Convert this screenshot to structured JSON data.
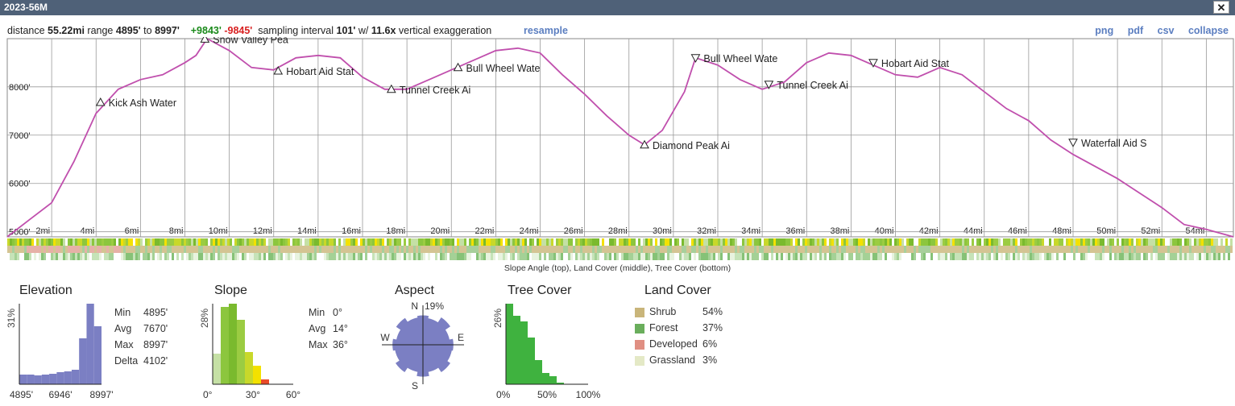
{
  "window": {
    "title": "2023-56M",
    "close_label": "✕"
  },
  "info": {
    "distance_label": "distance",
    "distance": "55.22mi",
    "range_label": "range",
    "range_min": "4895'",
    "range_to": "to",
    "range_max": "8997'",
    "gain": "+9843'",
    "loss": "-9845'",
    "sampling_label": "sampling interval",
    "sampling": "101'",
    "exag_label": "w/",
    "exag": "11.6x",
    "exag_suffix": "vertical exaggeration",
    "resample": "resample"
  },
  "links": {
    "png": "png",
    "pdf": "pdf",
    "csv": "csv",
    "collapse": "collapse"
  },
  "chart_data": {
    "type": "line",
    "x_ticks": [
      "2mi",
      "4mi",
      "6mi",
      "8mi",
      "10mi",
      "12mi",
      "14mi",
      "16mi",
      "18mi",
      "20mi",
      "22mi",
      "24mi",
      "26mi",
      "28mi",
      "30mi",
      "32mi",
      "34mi",
      "36mi",
      "38mi",
      "40mi",
      "42mi",
      "44mi",
      "46mi",
      "48mi",
      "50mi",
      "52mi",
      "54mi"
    ],
    "y_ticks": [
      "5000'",
      "6000'",
      "7000'",
      "8000'"
    ],
    "xlim": [
      0,
      55.22
    ],
    "ylim": [
      4895,
      8997
    ],
    "line_color": "#c04fad",
    "profile": [
      [
        0,
        4895
      ],
      [
        1,
        5250
      ],
      [
        2,
        5600
      ],
      [
        3,
        6450
      ],
      [
        4,
        7450
      ],
      [
        5,
        7950
      ],
      [
        6,
        8150
      ],
      [
        7,
        8250
      ],
      [
        8,
        8500
      ],
      [
        8.5,
        8650
      ],
      [
        9,
        8997
      ],
      [
        10,
        8750
      ],
      [
        11,
        8400
      ],
      [
        12,
        8350
      ],
      [
        13,
        8600
      ],
      [
        14,
        8650
      ],
      [
        15,
        8600
      ],
      [
        16,
        8200
      ],
      [
        17,
        7950
      ],
      [
        18,
        7950
      ],
      [
        19,
        8150
      ],
      [
        20,
        8350
      ],
      [
        21,
        8550
      ],
      [
        22,
        8750
      ],
      [
        23,
        8800
      ],
      [
        24,
        8700
      ],
      [
        25,
        8250
      ],
      [
        26,
        7850
      ],
      [
        27,
        7400
      ],
      [
        28,
        7000
      ],
      [
        28.7,
        6800
      ],
      [
        29.5,
        7100
      ],
      [
        30,
        7500
      ],
      [
        30.5,
        7900
      ],
      [
        31,
        8600
      ],
      [
        32,
        8450
      ],
      [
        33,
        8150
      ],
      [
        34,
        7950
      ],
      [
        35,
        8100
      ],
      [
        36,
        8500
      ],
      [
        37,
        8700
      ],
      [
        38,
        8650
      ],
      [
        39,
        8450
      ],
      [
        40,
        8250
      ],
      [
        41,
        8200
      ],
      [
        42,
        8400
      ],
      [
        43,
        8250
      ],
      [
        44,
        7900
      ],
      [
        45,
        7550
      ],
      [
        46,
        7300
      ],
      [
        47,
        6900
      ],
      [
        48,
        6600
      ],
      [
        49,
        6350
      ],
      [
        50,
        6100
      ],
      [
        51,
        5800
      ],
      [
        52,
        5500
      ],
      [
        53,
        5150
      ],
      [
        54,
        5050
      ],
      [
        55.22,
        4895
      ]
    ],
    "markers": [
      {
        "label": "Kick Ash Water",
        "mi": 4.2,
        "elev": 7680,
        "dir": "up"
      },
      {
        "label": "Snow Valley Pea",
        "mi": 8.9,
        "elev": 8990,
        "dir": "up"
      },
      {
        "label": "Hobart Aid Stat",
        "mi": 12.2,
        "elev": 8330,
        "dir": "up"
      },
      {
        "label": "Tunnel Creek Ai",
        "mi": 17.3,
        "elev": 7950,
        "dir": "up"
      },
      {
        "label": "Bull Wheel Wate",
        "mi": 20.3,
        "elev": 8400,
        "dir": "up"
      },
      {
        "label": "Diamond Peak Ai",
        "mi": 28.7,
        "elev": 6800,
        "dir": "up"
      },
      {
        "label": "Bull Wheel Wate",
        "mi": 31.0,
        "elev": 8600,
        "dir": "down"
      },
      {
        "label": "Tunnel Creek Ai",
        "mi": 34.3,
        "elev": 8050,
        "dir": "down"
      },
      {
        "label": "Hobart Aid Stat",
        "mi": 39.0,
        "elev": 8500,
        "dir": "down"
      },
      {
        "label": "Waterfall Aid S",
        "mi": 48.0,
        "elev": 6850,
        "dir": "down"
      }
    ],
    "strip_caption": "Slope Angle (top), Land Cover (middle), Tree Cover (bottom)"
  },
  "elevation": {
    "title": "Elevation",
    "ymax_label": "31%",
    "x_labels": [
      "4895'",
      "6946'",
      "8997'"
    ],
    "bars": [
      0.12,
      0.12,
      0.11,
      0.12,
      0.13,
      0.15,
      0.16,
      0.18,
      0.57,
      1.0,
      0.72
    ],
    "color": "#7b7fc3",
    "stats": [
      [
        "Min",
        "4895'"
      ],
      [
        "Avg",
        "7670'"
      ],
      [
        "Max",
        "8997'"
      ],
      [
        "Delta",
        "4102'"
      ]
    ]
  },
  "slope": {
    "title": "Slope",
    "ymax_label": "28%",
    "x_labels": [
      "0°",
      "30°",
      "60°"
    ],
    "bars": [
      {
        "v": 0.38,
        "c": "#c5e0a5"
      },
      {
        "v": 0.96,
        "c": "#8cc63e"
      },
      {
        "v": 1.0,
        "c": "#7aba2e"
      },
      {
        "v": 0.8,
        "c": "#9bcc42"
      },
      {
        "v": 0.4,
        "c": "#c8d82a"
      },
      {
        "v": 0.23,
        "c": "#f3e100"
      },
      {
        "v": 0.06,
        "c": "#e94a2a"
      }
    ],
    "stats": [
      [
        "Min",
        "0°"
      ],
      [
        "Avg",
        "14°"
      ],
      [
        "Max",
        "36°"
      ]
    ]
  },
  "aspect": {
    "title": "Aspect",
    "n_label": "N",
    "s_label": "S",
    "e_label": "E",
    "w_label": "W",
    "max_label": "19%",
    "color": "#7b7fc3",
    "values": [
      0.85,
      0.78,
      0.95,
      0.78,
      0.88,
      0.85,
      0.95,
      0.8,
      0.92,
      0.8,
      0.95,
      0.82,
      0.88,
      0.78,
      0.93,
      0.8
    ]
  },
  "tree": {
    "title": "Tree Cover",
    "ymax_label": "26%",
    "x_labels": [
      "0%",
      "50%",
      "100%"
    ],
    "bars": [
      1.0,
      0.85,
      0.78,
      0.58,
      0.3,
      0.14,
      0.1,
      0.02
    ],
    "color": "#3fb23f"
  },
  "landcover": {
    "title": "Land Cover",
    "items": [
      {
        "name": "Shrub",
        "pct": "54%",
        "color": "#c9b57a"
      },
      {
        "name": "Forest",
        "pct": "37%",
        "color": "#6aae5c"
      },
      {
        "name": "Developed",
        "pct": "6%",
        "color": "#e08f82"
      },
      {
        "name": "Grassland",
        "pct": "3%",
        "color": "#e4e9c6"
      }
    ]
  }
}
